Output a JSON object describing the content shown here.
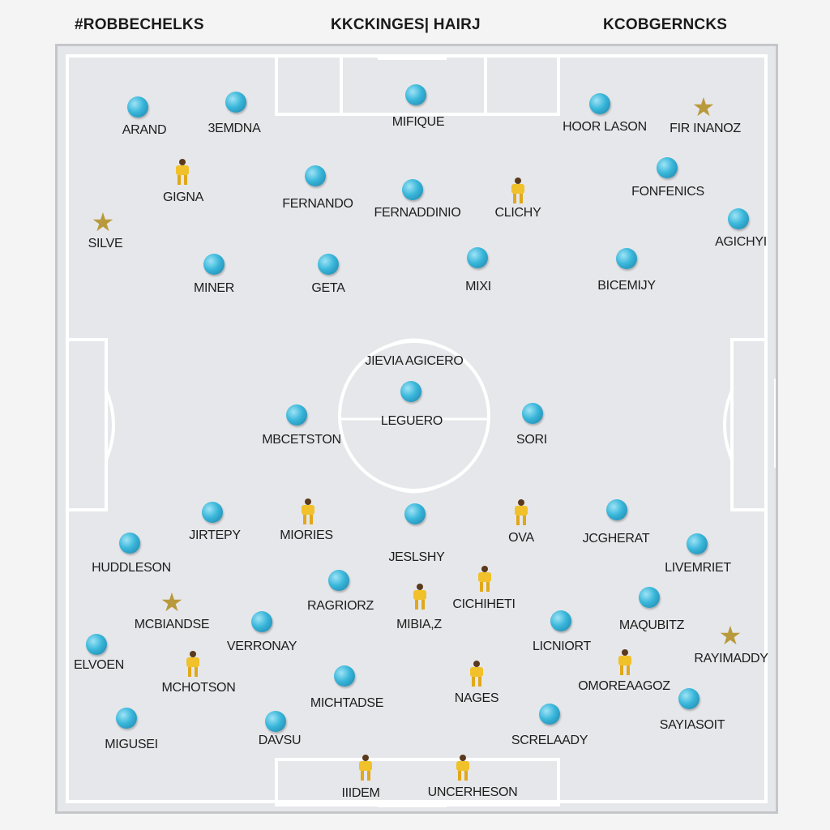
{
  "header": {
    "left": "#ROBBECHELKS",
    "center": "KKCKINGES| HAIRJ",
    "right": "KCOBGERNCKS"
  },
  "center_circle_label": "JIEVIA AGICERO",
  "players": [
    {
      "name": "ARAND",
      "marker": "ball"
    },
    {
      "name": "3EMDNA",
      "marker": "ball"
    },
    {
      "name": "MIFIQUE",
      "marker": "ball"
    },
    {
      "name": "HOOR LASON",
      "marker": "ball"
    },
    {
      "name": "FIR INANOZ",
      "marker": "star"
    },
    {
      "name": "GIGNA",
      "marker": "figure"
    },
    {
      "name": "FERNANDO",
      "marker": "ball"
    },
    {
      "name": "FERNADDINIO",
      "marker": "ball"
    },
    {
      "name": "CLICHY",
      "marker": "figure"
    },
    {
      "name": "FONFENICS",
      "marker": "ball"
    },
    {
      "name": "SILVE",
      "marker": "star"
    },
    {
      "name": "AGICHYI",
      "marker": "ball"
    },
    {
      "name": "MINER",
      "marker": "ball"
    },
    {
      "name": "GETA",
      "marker": "ball"
    },
    {
      "name": "MIXI",
      "marker": "ball"
    },
    {
      "name": "BICEMIJY",
      "marker": "ball"
    },
    {
      "name": "LEGUERO",
      "marker": "ball"
    },
    {
      "name": "MBCETSTON",
      "marker": "ball"
    },
    {
      "name": "SORI",
      "marker": "ball"
    },
    {
      "name": "JIRTEPY",
      "marker": "ball"
    },
    {
      "name": "MIORIES",
      "marker": "figure"
    },
    {
      "name": "JESLSHY",
      "marker": "ball"
    },
    {
      "name": "OVA",
      "marker": "figure"
    },
    {
      "name": "JCGHERAT",
      "marker": "ball"
    },
    {
      "name": "HUDDLESON",
      "marker": "ball"
    },
    {
      "name": "LIVEMRIET",
      "marker": "ball"
    },
    {
      "name": "MCBIANDSE",
      "marker": "star"
    },
    {
      "name": "RAGRIORZ",
      "marker": "ball"
    },
    {
      "name": "MIBIA,Z",
      "marker": "figure"
    },
    {
      "name": "CICHIHETI",
      "marker": "figure"
    },
    {
      "name": "MAQUBITZ",
      "marker": "ball"
    },
    {
      "name": "VERRONAY",
      "marker": "ball"
    },
    {
      "name": "LICNIORT",
      "marker": "ball"
    },
    {
      "name": "ELVOEN",
      "marker": "ball"
    },
    {
      "name": "RAYIMADDY",
      "marker": "star"
    },
    {
      "name": "MCHOTSON",
      "marker": "figure"
    },
    {
      "name": "MICHTADSE",
      "marker": "ball"
    },
    {
      "name": "NAGES",
      "marker": "figure"
    },
    {
      "name": "OMOREAAGOZ",
      "marker": "figure"
    },
    {
      "name": "MIGUSEI",
      "marker": "ball"
    },
    {
      "name": "DAVSU",
      "marker": "ball"
    },
    {
      "name": "SCRELAADY",
      "marker": "ball"
    },
    {
      "name": "SAYIASOIT",
      "marker": "ball"
    },
    {
      "name": "IIIDEM",
      "marker": "figure"
    },
    {
      "name": "UNCERHESON",
      "marker": "figure"
    }
  ]
}
